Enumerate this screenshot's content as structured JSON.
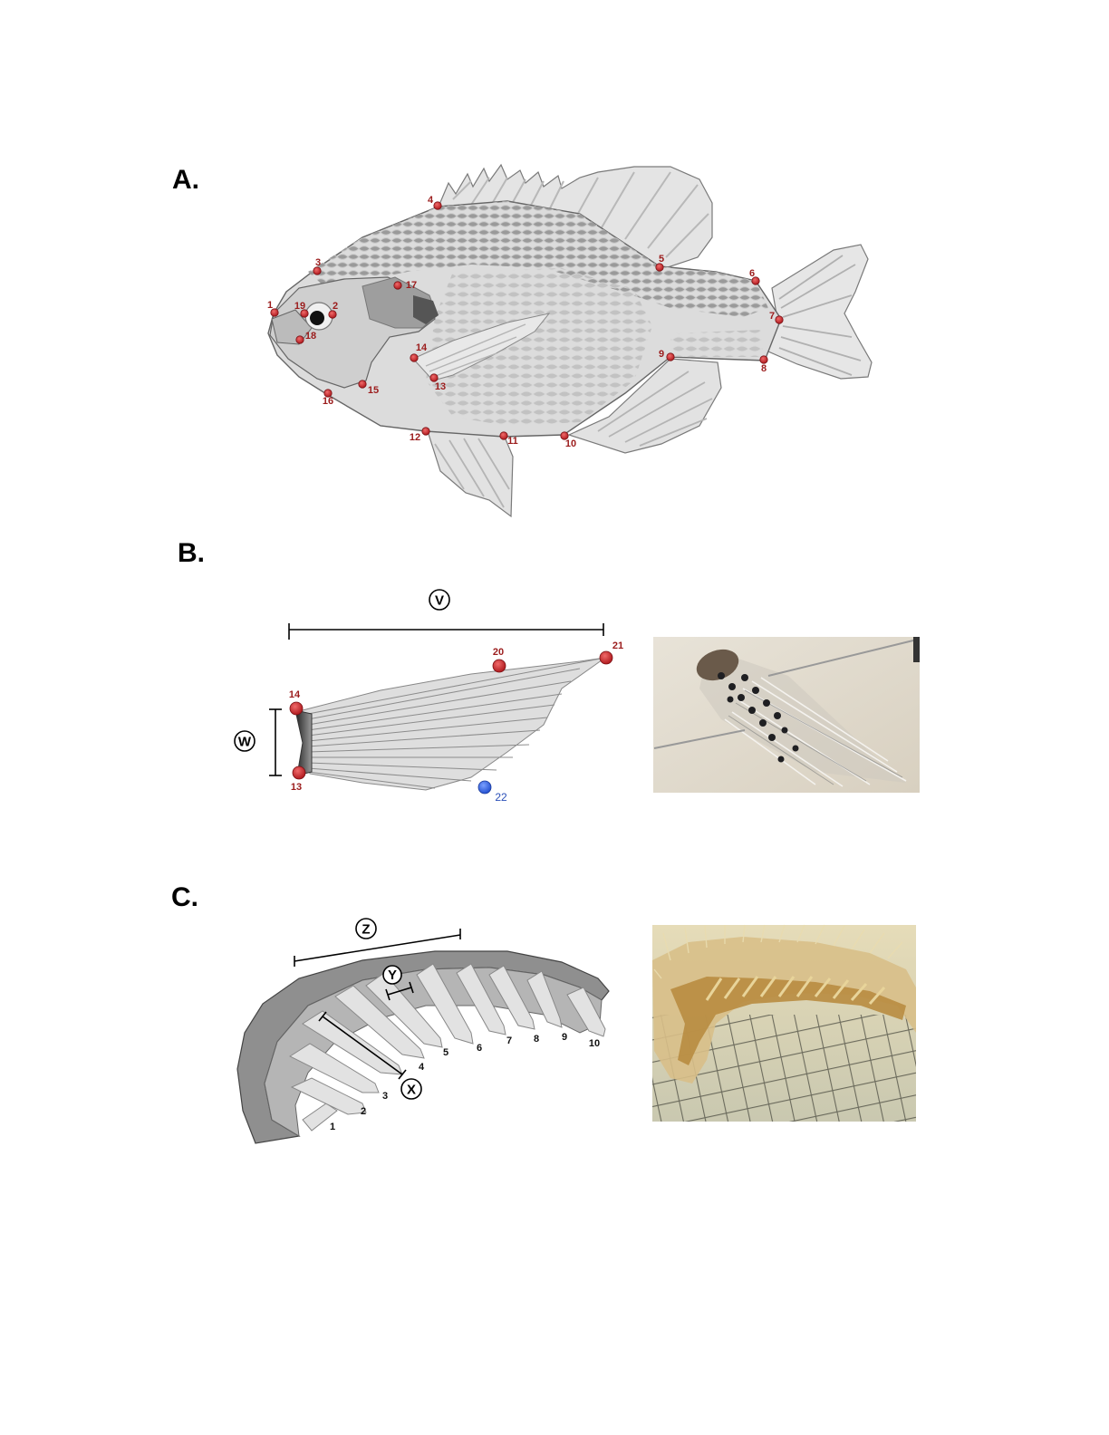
{
  "panels": {
    "a": {
      "label": "A."
    },
    "b": {
      "label": "B."
    },
    "c": {
      "label": "C."
    }
  },
  "fish_landmarks": [
    "1",
    "2",
    "3",
    "4",
    "5",
    "6",
    "7",
    "8",
    "9",
    "10",
    "11",
    "12",
    "13",
    "14",
    "15",
    "16",
    "17",
    "18",
    "19"
  ],
  "fin_landmarks": {
    "p14": "14",
    "p13": "13",
    "p20": "20",
    "p21": "21",
    "p22": "22"
  },
  "fin_measures": {
    "v": "V",
    "w": "W"
  },
  "raker_measures": {
    "x": "X",
    "y": "Y",
    "z": "Z"
  },
  "raker_numbers": [
    "1",
    "2",
    "3",
    "4",
    "5",
    "6",
    "7",
    "8",
    "9",
    "10"
  ],
  "colors": {
    "landmark_red": "#c8262a",
    "landmark_blue": "#3b6fe8"
  }
}
